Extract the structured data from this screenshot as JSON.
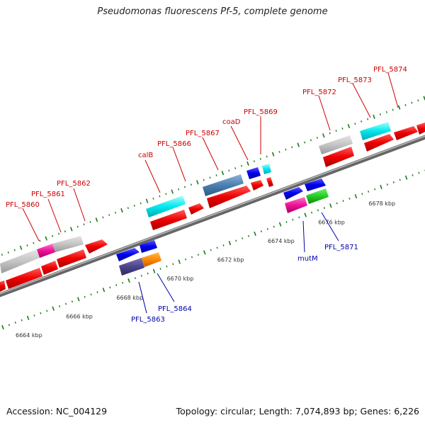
{
  "title": "Pseudomonas fluorescens Pf-5, complete genome",
  "footer": {
    "accession": "Accession: NC_004129",
    "summary": "Topology: circular; Length: 7,074,893 bp; Genes: 6,226"
  },
  "colors": {
    "backbone": "#888888",
    "tick": "#1a7a1a",
    "label_top": "#cc0000",
    "label_bottom": "#0000aa"
  },
  "scale_ticks": [
    {
      "kbp": 6664,
      "label": "6664 kbp"
    },
    {
      "kbp": 6666,
      "label": "6666 kbp"
    },
    {
      "kbp": 6668,
      "label": "6668 kbp"
    },
    {
      "kbp": 6670,
      "label": "6670 kbp"
    },
    {
      "kbp": 6672,
      "label": "6672 kbp"
    },
    {
      "kbp": 6674,
      "label": "6674 kbp"
    },
    {
      "kbp": 6676,
      "label": "6676 kbp"
    },
    {
      "kbp": 6678,
      "label": "6678 kbp"
    }
  ],
  "gene_labels_top": [
    "PFL_5860",
    "PFL_5861",
    "PFL_5862",
    "calB",
    "PFL_5866",
    "PFL_5867",
    "coaD",
    "PFL_5869",
    "PFL_5872",
    "PFL_5873",
    "PFL_5874"
  ],
  "gene_labels_bottom": [
    "PFL_5863",
    "PFL_5864",
    "mutM",
    "PFL_5871"
  ]
}
